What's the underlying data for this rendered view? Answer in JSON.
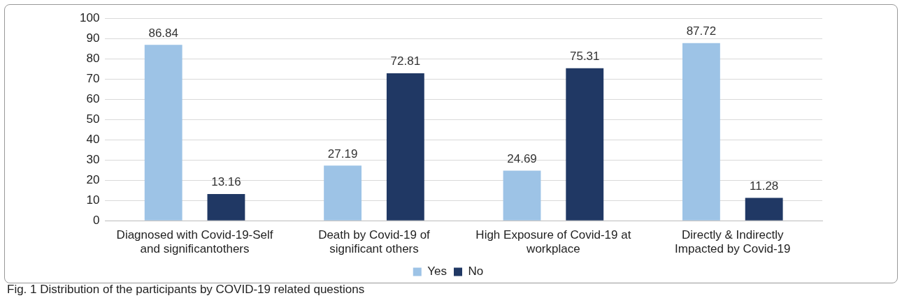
{
  "chart_data": {
    "type": "bar",
    "categories": [
      "Diagnosed with Covid-19-Self and significantothers",
      "Death by Covid-19 of significant others",
      "High Exposure of Covid-19 at workplace",
      "Directly & Indirectly Impacted by Covid-19"
    ],
    "series": [
      {
        "name": "Yes",
        "color": "#9dc3e6",
        "values": [
          86.84,
          27.19,
          24.69,
          87.72
        ]
      },
      {
        "name": "No",
        "color": "#203864",
        "values": [
          13.16,
          72.81,
          75.31,
          11.28
        ]
      }
    ],
    "ylim": [
      0,
      100
    ],
    "yticks": [
      0,
      10,
      20,
      30,
      40,
      50,
      60,
      70,
      80,
      90,
      100
    ],
    "grid": "y",
    "legend": "bottom",
    "data_labels": true,
    "annotations": [
      "Fig. 1  Distribution of the participants by COVID-19 related questions"
    ]
  }
}
